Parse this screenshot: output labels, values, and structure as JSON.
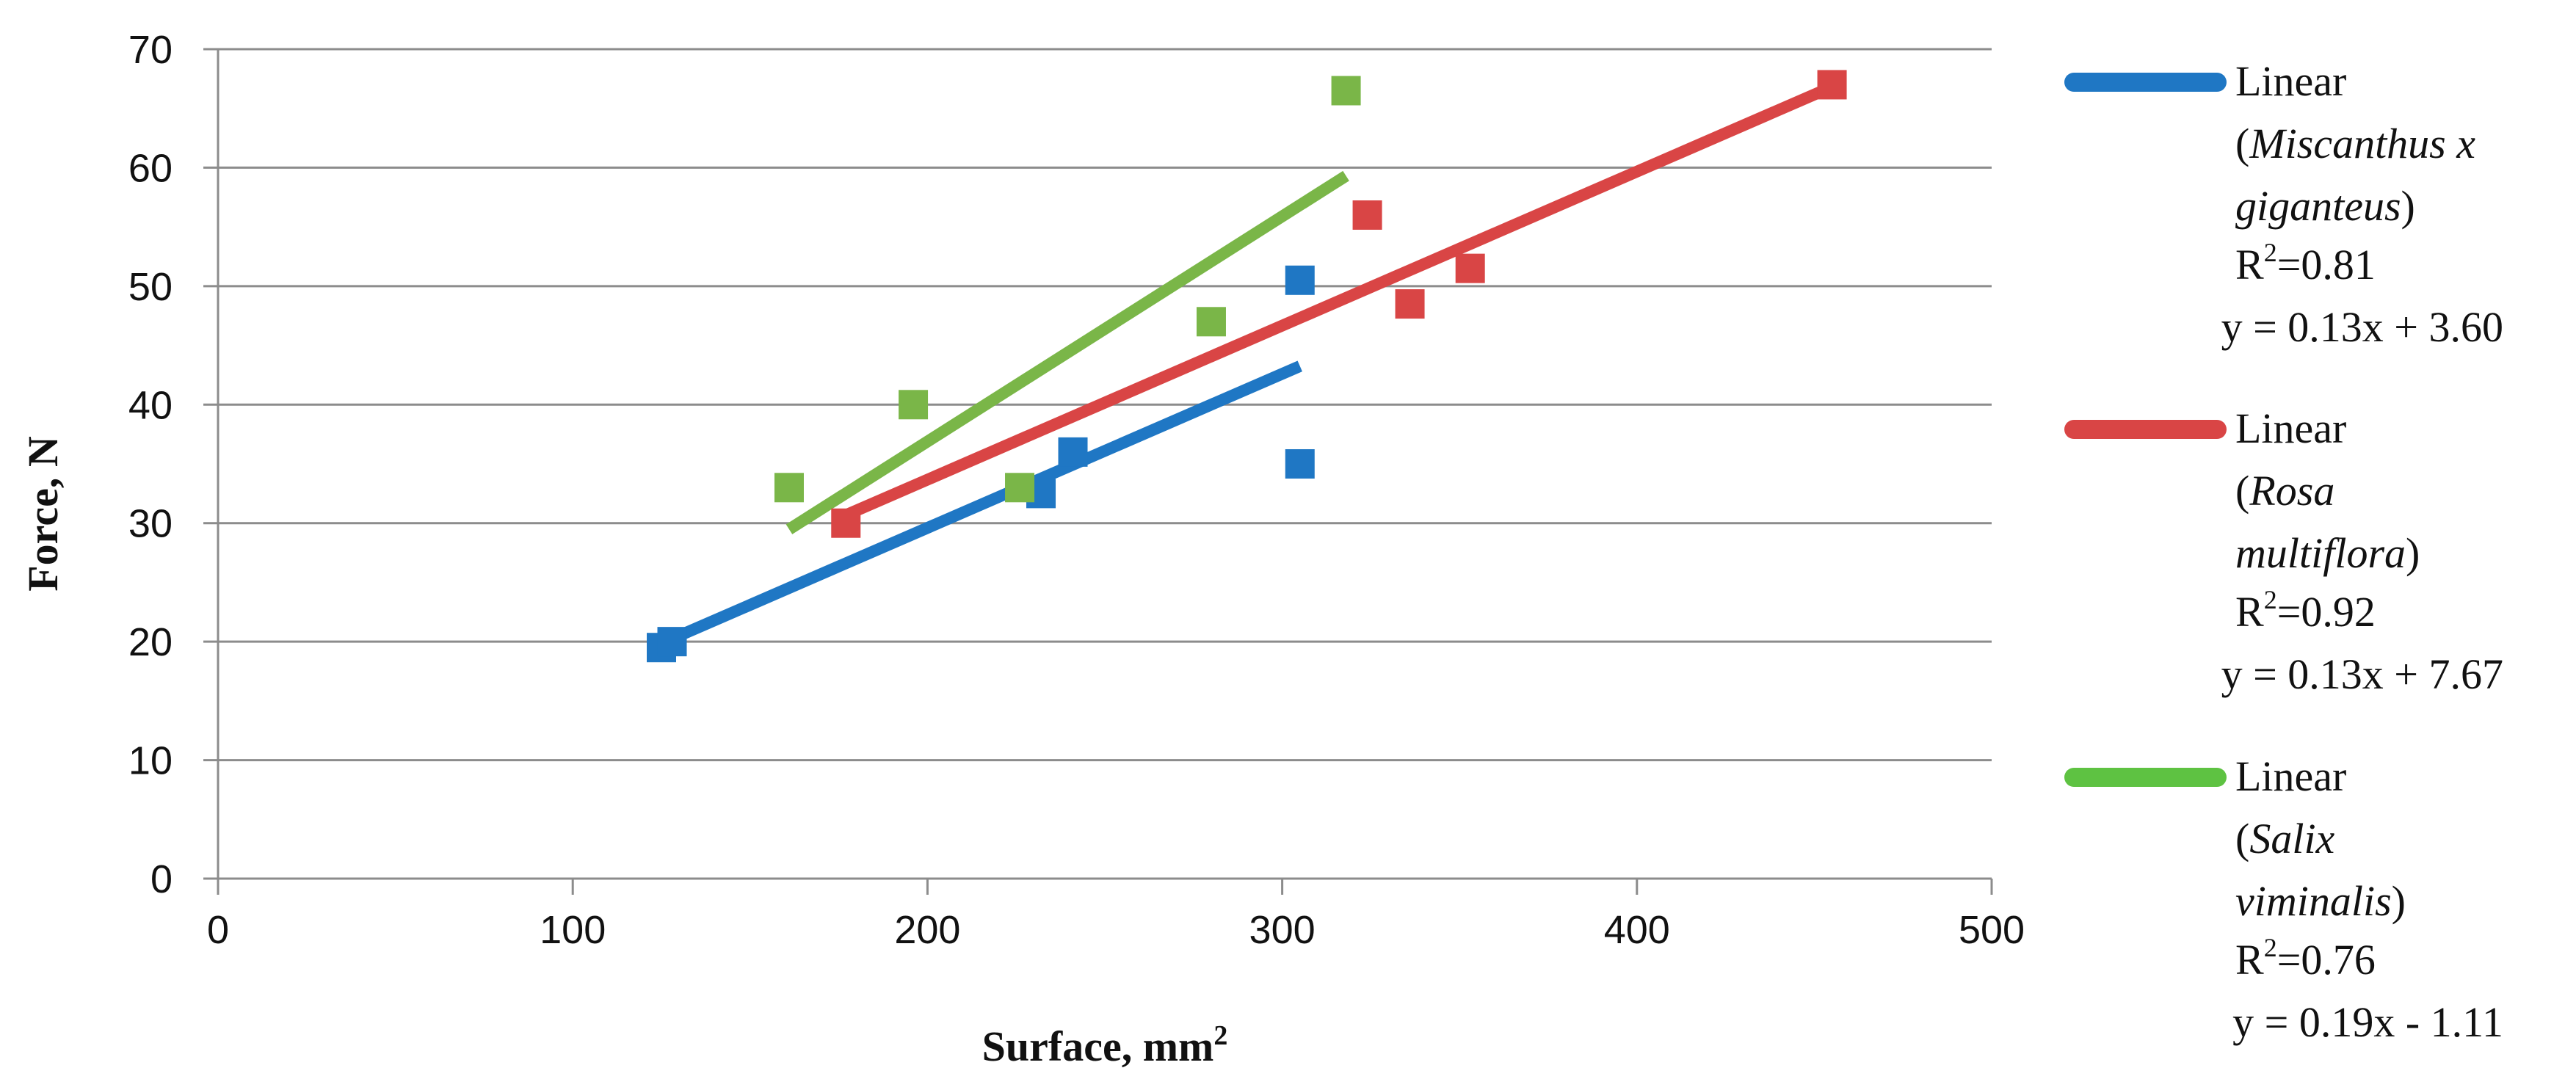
{
  "chart_data": {
    "type": "scatter",
    "xlabel": "Surface, mm",
    "xlabel_superscript": "2",
    "ylabel": "Force, N",
    "xlim": [
      0,
      500
    ],
    "ylim": [
      0,
      70
    ],
    "xticks": [
      "0",
      "100",
      "200",
      "300",
      "400",
      "500"
    ],
    "yticks": [
      "0",
      "10",
      "20",
      "30",
      "40",
      "50",
      "60",
      "70"
    ],
    "grid": "horizontal",
    "legend_position": "right",
    "series": [
      {
        "name": "Miscanthus x giganteus",
        "color": "#1f77c4",
        "points": [
          [
            125,
            19.5
          ],
          [
            128,
            20.0
          ],
          [
            232,
            32.5
          ],
          [
            241,
            36.0
          ],
          [
            305,
            50.5
          ],
          [
            305,
            35.0
          ]
        ],
        "trendline": {
          "x": [
            125,
            305
          ],
          "slope": 0.13,
          "intercept": 3.6
        }
      },
      {
        "name": "Rosa multiflora",
        "color": "#d94545",
        "points": [
          [
            177,
            30.0
          ],
          [
            324,
            56.0
          ],
          [
            336,
            48.5
          ],
          [
            353,
            51.5
          ],
          [
            455,
            67.0
          ]
        ],
        "trendline": {
          "x": [
            177,
            455
          ],
          "slope": 0.13,
          "intercept": 7.67
        }
      },
      {
        "name": "Salix viminalis",
        "color": "#7ab648",
        "points": [
          [
            161,
            33.0
          ],
          [
            196,
            40.0
          ],
          [
            226,
            33.0
          ],
          [
            280,
            47.0
          ],
          [
            318,
            66.5
          ]
        ],
        "trendline": {
          "x": [
            161,
            318
          ],
          "slope": 0.19,
          "intercept": -1.11
        }
      }
    ]
  },
  "legend": [
    {
      "color": "#1f77c4",
      "line1": "Linear",
      "line2_prefix": "(",
      "line2_italic": "Miscanthus x",
      "line2_suffix": "",
      "line3_prefix": "",
      "line3_italic": "giganteus",
      "line3_suffix": ")",
      "r2_label": "R",
      "r2_sup": "2",
      "r2_value": "=0.81",
      "equation": "y = 0.13x + 3.60"
    },
    {
      "color": "#d94545",
      "line1": "Linear",
      "line2_prefix": "(",
      "line2_italic": "Rosa",
      "line2_suffix": "",
      "line3_prefix": "",
      "line3_italic": "multiflora",
      "line3_suffix": ")",
      "r2_label": "R",
      "r2_sup": "2",
      "r2_value": "=0.92",
      "equation": "y = 0.13x + 7.67"
    },
    {
      "color": "#5ec242",
      "line1": "Linear",
      "line2_prefix": "(",
      "line2_italic": "Salix",
      "line2_suffix": "",
      "line3_prefix": "",
      "line3_italic": "viminalis",
      "line3_suffix": ")",
      "r2_label": "R",
      "r2_sup": "2",
      "r2_value": "=0.76",
      "equation": "y = 0.19x - 1.11"
    }
  ]
}
